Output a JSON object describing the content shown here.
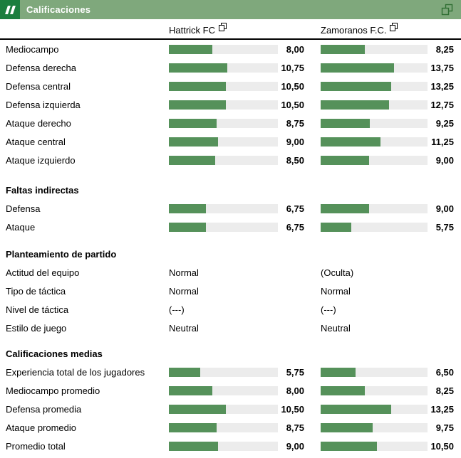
{
  "panel": {
    "title": "Calificaciones"
  },
  "icons": {
    "title_square": "double-slash-icon",
    "panel_copy": "copy-icon",
    "team_popup": "open-in-new-window-icon"
  },
  "teams": [
    {
      "name": "Hattrick FC"
    },
    {
      "name": "Zamoranos F.C."
    }
  ],
  "colors": {
    "title_bar_bg": "#7fa87c",
    "title_square_bg": "#1b7e3e",
    "bar_fill": "#55915a",
    "bar_track": "#ececec",
    "copy_icon_stroke": "#2f6e32"
  },
  "ratings_scale_max": 20,
  "sections": [
    {
      "title": "",
      "type": "bars",
      "rows": [
        {
          "label": "Mediocampo",
          "home": "8,00",
          "away": "8,25"
        },
        {
          "label": "Defensa derecha",
          "home": "10,75",
          "away": "13,75"
        },
        {
          "label": "Defensa central",
          "home": "10,50",
          "away": "13,25"
        },
        {
          "label": "Defensa izquierda",
          "home": "10,50",
          "away": "12,75"
        },
        {
          "label": "Ataque derecho",
          "home": "8,75",
          "away": "9,25"
        },
        {
          "label": "Ataque central",
          "home": "9,00",
          "away": "11,25"
        },
        {
          "label": "Ataque izquierdo",
          "home": "8,50",
          "away": "9,00"
        }
      ]
    },
    {
      "title": "Faltas indirectas",
      "type": "bars",
      "rows": [
        {
          "label": "Defensa",
          "home": "6,75",
          "away": "9,00"
        },
        {
          "label": "Ataque",
          "home": "6,75",
          "away": "5,75"
        }
      ]
    },
    {
      "title": "Planteamiento de partido",
      "type": "text",
      "rows": [
        {
          "label": "Actitud del equipo",
          "home": "Normal",
          "away": "(Oculta)"
        },
        {
          "label": "Tipo de táctica",
          "home": "Normal",
          "away": "Normal"
        },
        {
          "label": "Nivel de táctica",
          "home": "(---)",
          "away": "(---)"
        },
        {
          "label": "Estilo de juego",
          "home": "Neutral",
          "away": "Neutral"
        }
      ]
    },
    {
      "title": "Calificaciones medias",
      "type": "bars",
      "rows": [
        {
          "label": "Experiencia total de los jugadores",
          "home": "5,75",
          "away": "6,50"
        },
        {
          "label": "Mediocampo promedio",
          "home": "8,00",
          "away": "8,25"
        },
        {
          "label": "Defensa promedia",
          "home": "10,50",
          "away": "13,25"
        },
        {
          "label": "Ataque promedio",
          "home": "8,75",
          "away": "9,75"
        },
        {
          "label": "Promedio total",
          "home": "9,00",
          "away": "10,50"
        }
      ]
    }
  ]
}
